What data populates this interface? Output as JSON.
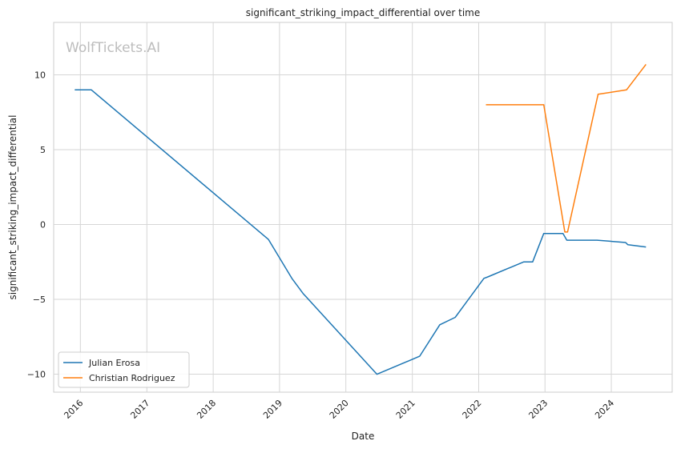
{
  "watermark": "WolfTickets.AI",
  "chart_data": {
    "type": "line",
    "title": "significant_striking_impact_differential over time",
    "xlabel": "Date",
    "ylabel": "significant_striking_impact_differential",
    "x_ticks": [
      "2016",
      "2017",
      "2018",
      "2019",
      "2020",
      "2021",
      "2022",
      "2023",
      "2024"
    ],
    "y_ticks": [
      10,
      5,
      0,
      -5,
      -10
    ],
    "y_tick_labels": [
      "10",
      "5",
      "0",
      "−5",
      "−10"
    ],
    "xlim": [
      "2015-08-07",
      "2024-12-01"
    ],
    "ylim": [
      -11.2,
      13.5
    ],
    "grid": true,
    "legend": "lower left",
    "series": [
      {
        "name": "Julian Erosa",
        "color": "#1f77b4",
        "points": [
          [
            "2015-12-01",
            9.0
          ],
          [
            "2016-03-01",
            9.0
          ],
          [
            "2018-11-01",
            -1.0
          ],
          [
            "2019-03-10",
            -3.6
          ],
          [
            "2019-05-10",
            -4.6
          ],
          [
            "2020-06-20",
            -10.0
          ],
          [
            "2021-02-10",
            -8.8
          ],
          [
            "2021-06-01",
            -6.7
          ],
          [
            "2021-08-25",
            -6.2
          ],
          [
            "2022-01-30",
            -3.6
          ],
          [
            "2022-02-20",
            -3.5
          ],
          [
            "2022-09-05",
            -2.5
          ],
          [
            "2022-10-25",
            -2.5
          ],
          [
            "2022-12-25",
            -0.6
          ],
          [
            "2023-04-10",
            -0.6
          ],
          [
            "2023-05-01",
            -1.05
          ],
          [
            "2023-10-15",
            -1.05
          ],
          [
            "2024-03-20",
            -1.2
          ],
          [
            "2024-04-01",
            -1.35
          ],
          [
            "2024-07-10",
            -1.5
          ]
        ]
      },
      {
        "name": "Christian Rodriguez",
        "color": "#ff7f0e",
        "points": [
          [
            "2022-02-10",
            8.0
          ],
          [
            "2022-12-25",
            8.0
          ],
          [
            "2023-04-20",
            -0.5
          ],
          [
            "2023-05-05",
            -0.5
          ],
          [
            "2023-10-20",
            8.7
          ],
          [
            "2024-03-25",
            9.0
          ],
          [
            "2024-07-10",
            10.7
          ]
        ]
      }
    ]
  }
}
